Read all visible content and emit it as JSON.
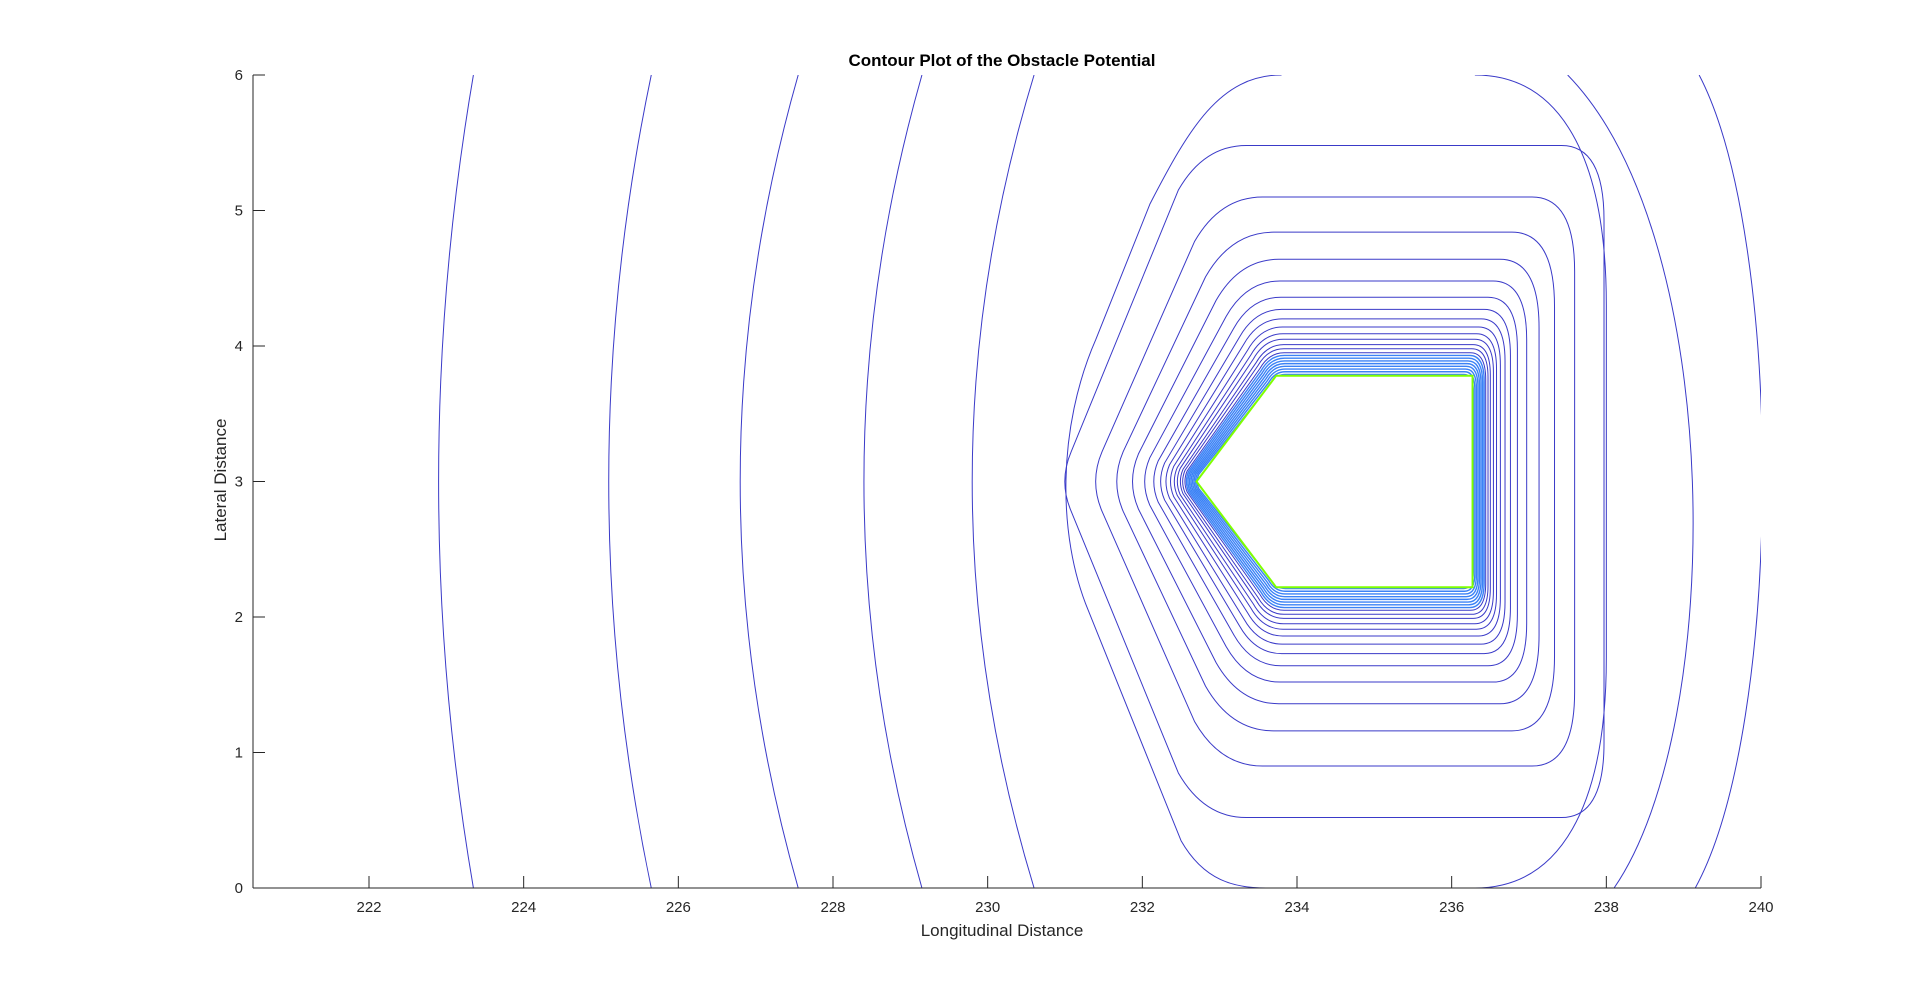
{
  "chart_data": {
    "type": "contour",
    "title": "Contour Plot of the Obstacle Potential",
    "xlabel": "Longitudinal Distance",
    "ylabel": "Lateral Distance",
    "xlim": [
      220.5,
      240
    ],
    "ylim": [
      0,
      6
    ],
    "xticks": [
      222,
      224,
      226,
      228,
      230,
      232,
      234,
      236,
      238,
      240
    ],
    "yticks": [
      0,
      1,
      2,
      3,
      4,
      5,
      6
    ],
    "grid": false,
    "obstacle": {
      "shape": "pentagon",
      "vertices": [
        [
          232.7,
          3.0
        ],
        [
          233.73,
          3.78
        ],
        [
          236.27,
          3.78
        ],
        [
          236.27,
          2.22
        ],
        [
          233.73,
          2.22
        ]
      ],
      "edge_color": "#7fff00"
    },
    "contour_colors": {
      "outer": "#3a3ac8",
      "inner": "#3b82f6"
    },
    "outer_arcs": [
      {
        "x_mid": 222.9,
        "x_ends": 223.35
      },
      {
        "x_mid": 225.1,
        "x_ends": 225.65
      },
      {
        "x_mid": 226.8,
        "x_ends": 227.55
      },
      {
        "x_mid": 228.4,
        "x_ends": 229.15
      },
      {
        "x_mid": 229.8,
        "x_ends": 230.6
      }
    ],
    "closed_levels_offset": [
      0.01,
      0.03,
      0.05,
      0.07,
      0.09,
      0.11,
      0.13,
      0.15,
      0.17,
      0.2,
      0.23,
      0.27,
      0.31,
      0.36,
      0.42,
      0.49,
      0.58,
      0.7,
      0.86,
      1.06,
      1.32,
      1.7
    ],
    "wide_levels": [
      {
        "x_left": 231.35,
        "x_right": 238.0,
        "y_top": 6.0,
        "x_top_left": 233.6,
        "x_top_right": 236.7,
        "x_bot_left": 232.0,
        "x_bot_right": 236.6,
        "corner": 0.45
      },
      {
        "x_left": 231.3,
        "x_right": 239.55,
        "open": true,
        "x_top_right": 239.2,
        "x_bot_right": 239.1
      }
    ]
  }
}
